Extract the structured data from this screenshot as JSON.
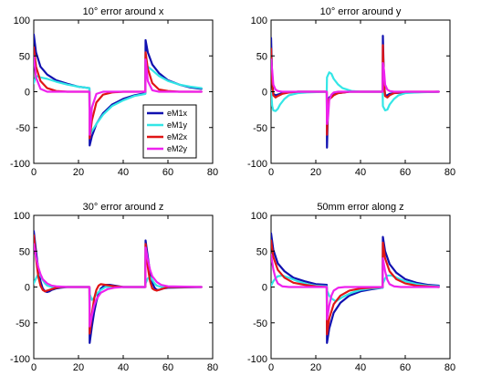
{
  "colors": {
    "eM1x": "#1010b0",
    "eM1y": "#33e6e6",
    "eM2x": "#e01515",
    "eM2y": "#ee22ee"
  },
  "chart_data": [
    {
      "type": "line",
      "title": "10° error around x",
      "xlabel": "",
      "ylabel": "",
      "xlim": [
        0,
        80
      ],
      "ylim": [
        -100,
        100
      ],
      "xticks": [
        0,
        20,
        40,
        60,
        80
      ],
      "yticks": [
        100,
        50,
        0,
        -50,
        -100
      ],
      "grid": false,
      "legend": {
        "placement": "center-right",
        "entries": [
          "eM1x",
          "eM1y",
          "eM2x",
          "eM2y"
        ]
      },
      "series": [
        {
          "name": "eM1x",
          "color": "#1010b0",
          "x": [
            0,
            1,
            3,
            6,
            10,
            15,
            20,
            24.9,
            25,
            26,
            28,
            31,
            35,
            40,
            45,
            49.9,
            50,
            51,
            53,
            56,
            60,
            65,
            70,
            75
          ],
          "y": [
            80,
            55,
            35,
            24,
            16,
            11,
            7,
            5,
            -75,
            -62,
            -45,
            -30,
            -18,
            -10,
            -5,
            -2,
            72,
            55,
            38,
            26,
            16,
            10,
            6,
            4
          ]
        },
        {
          "name": "eM1y",
          "color": "#33e6e6",
          "x": [
            0,
            1,
            3,
            6,
            10,
            15,
            20,
            24.9,
            25,
            26,
            28,
            31,
            35,
            40,
            45,
            49.9,
            50,
            51,
            53,
            56,
            60,
            65,
            70,
            75
          ],
          "y": [
            12,
            22,
            20,
            18,
            14,
            10,
            7,
            5,
            -60,
            -55,
            -45,
            -32,
            -20,
            -12,
            -6,
            -3,
            30,
            35,
            30,
            22,
            15,
            10,
            7,
            5
          ]
        },
        {
          "name": "eM2x",
          "color": "#e01515",
          "x": [
            0,
            1,
            3,
            6,
            10,
            15,
            20,
            24.9,
            25,
            26,
            28,
            31,
            35,
            40,
            45,
            49.9,
            50,
            51,
            53,
            56,
            60,
            65,
            70,
            75
          ],
          "y": [
            62,
            35,
            15,
            5,
            1,
            0,
            0,
            0,
            -65,
            -40,
            -15,
            -4,
            -1,
            0,
            0,
            0,
            55,
            32,
            12,
            3,
            1,
            0,
            0,
            0
          ]
        },
        {
          "name": "eM2y",
          "color": "#ee22ee",
          "x": [
            0,
            1,
            3,
            6,
            10,
            15,
            20,
            24.9,
            25,
            26,
            28,
            31,
            35,
            40,
            45,
            49.9,
            50,
            51,
            53,
            56,
            60,
            65,
            70,
            75
          ],
          "y": [
            50,
            20,
            4,
            0,
            0,
            0,
            0,
            0,
            -60,
            -22,
            -3,
            0,
            0,
            0,
            0,
            0,
            45,
            15,
            2,
            0,
            0,
            0,
            0,
            0
          ]
        }
      ]
    },
    {
      "type": "line",
      "title": "10° error around y",
      "xlabel": "",
      "ylabel": "",
      "xlim": [
        0,
        80
      ],
      "ylim": [
        -100,
        100
      ],
      "xticks": [
        0,
        20,
        40,
        60,
        80
      ],
      "yticks": [
        100,
        50,
        0,
        -50,
        -100
      ],
      "grid": false,
      "series": [
        {
          "name": "eM1x",
          "color": "#1010b0",
          "x": [
            0,
            0.5,
            1,
            2,
            3,
            5,
            8,
            12,
            24.9,
            25,
            25.5,
            26,
            27,
            28,
            30,
            35,
            49.9,
            50,
            50.5,
            51,
            52,
            53,
            55,
            60,
            75
          ],
          "y": [
            75,
            15,
            -3,
            -5,
            -4,
            -2,
            -1,
            0,
            0,
            -78,
            -20,
            -8,
            -6,
            -4,
            -2,
            0,
            0,
            78,
            12,
            -5,
            -5,
            -3,
            -2,
            -1,
            0
          ]
        },
        {
          "name": "eM1y",
          "color": "#33e6e6",
          "x": [
            0,
            0.5,
            1,
            2,
            3,
            4,
            6,
            8,
            12,
            16,
            24.9,
            25,
            26,
            27,
            28,
            30,
            32,
            36,
            40,
            49.9,
            50,
            51,
            52,
            53,
            55,
            57,
            60,
            65,
            75
          ],
          "y": [
            0,
            -20,
            -26,
            -27,
            -24,
            -18,
            -10,
            -5,
            -2,
            -1,
            0,
            20,
            27,
            25,
            18,
            10,
            5,
            1,
            0,
            0,
            -20,
            -26,
            -25,
            -18,
            -10,
            -5,
            -2,
            -1,
            0
          ]
        },
        {
          "name": "eM2x",
          "color": "#e01515",
          "x": [
            0,
            0.5,
            1,
            2,
            3,
            5,
            8,
            12,
            24.9,
            25,
            25.5,
            26,
            27,
            28,
            30,
            35,
            49.9,
            50,
            50.5,
            51,
            52,
            53,
            55,
            60,
            75
          ],
          "y": [
            60,
            12,
            -5,
            -8,
            -6,
            -3,
            -1,
            0,
            0,
            -60,
            -15,
            -10,
            -8,
            -5,
            -2,
            0,
            0,
            65,
            10,
            -6,
            -8,
            -5,
            -2,
            0,
            0
          ]
        },
        {
          "name": "eM2y",
          "color": "#ee22ee",
          "x": [
            0,
            0.5,
            1,
            2,
            3,
            5,
            8,
            24.9,
            25,
            25.5,
            26,
            27,
            28,
            30,
            49.9,
            50,
            50.5,
            51,
            52,
            53,
            55,
            75
          ],
          "y": [
            45,
            30,
            10,
            3,
            1,
            0,
            0,
            0,
            -45,
            -35,
            -12,
            -4,
            -1,
            0,
            0,
            40,
            30,
            10,
            3,
            1,
            0,
            0
          ]
        }
      ]
    },
    {
      "type": "line",
      "title": "30° error around z",
      "xlabel": "",
      "ylabel": "",
      "xlim": [
        0,
        80
      ],
      "ylim": [
        -100,
        100
      ],
      "xticks": [
        0,
        20,
        40,
        60,
        80
      ],
      "yticks": [
        100,
        50,
        0,
        -50,
        -100
      ],
      "grid": false,
      "series": [
        {
          "name": "eM1x",
          "color": "#1010b0",
          "x": [
            0,
            1,
            2,
            3,
            4,
            5,
            6,
            7,
            8,
            10,
            12,
            15,
            24.9,
            25,
            26,
            27,
            28,
            29,
            30,
            32,
            34,
            36,
            40,
            49.9,
            50,
            51,
            52,
            53,
            54,
            55,
            56,
            58,
            60,
            75
          ],
          "y": [
            78,
            50,
            25,
            8,
            -2,
            -6,
            -7,
            -6,
            -4,
            -2,
            -1,
            0,
            0,
            -78,
            -55,
            -35,
            -20,
            -9,
            -2,
            3,
            3,
            2,
            0,
            0,
            65,
            42,
            20,
            6,
            -1,
            -4,
            -4,
            -2,
            -1,
            0
          ]
        },
        {
          "name": "eM1y",
          "color": "#33e6e6",
          "x": [
            0,
            1,
            2,
            3,
            4,
            5,
            6,
            8,
            12,
            24.9,
            25,
            26,
            27,
            28,
            30,
            32,
            35,
            40,
            49.9,
            50,
            51,
            52,
            53,
            54,
            55,
            57,
            60,
            75
          ],
          "y": [
            5,
            12,
            18,
            16,
            10,
            5,
            2,
            0,
            0,
            0,
            -10,
            -18,
            -15,
            -10,
            -4,
            0,
            0,
            0,
            0,
            5,
            12,
            14,
            10,
            5,
            2,
            0,
            0,
            0
          ]
        },
        {
          "name": "eM2x",
          "color": "#e01515",
          "x": [
            0,
            1,
            2,
            3,
            4,
            5,
            6,
            7,
            8,
            10,
            12,
            24.9,
            25,
            26,
            27,
            28,
            29,
            30,
            32,
            34,
            36,
            40,
            49.9,
            50,
            51,
            52,
            53,
            54,
            55,
            56,
            58,
            60,
            75
          ],
          "y": [
            72,
            40,
            15,
            2,
            -4,
            -6,
            -5,
            -4,
            -3,
            -1,
            0,
            0,
            -65,
            -38,
            -16,
            -4,
            2,
            4,
            3,
            2,
            1,
            0,
            0,
            60,
            28,
            8,
            -2,
            -4,
            -5,
            -4,
            -2,
            0,
            0
          ]
        },
        {
          "name": "eM2y",
          "color": "#ee22ee",
          "x": [
            0,
            1,
            2,
            3,
            4,
            6,
            8,
            10,
            15,
            24.9,
            25,
            26,
            27,
            28,
            30,
            33,
            36,
            40,
            49.9,
            50,
            51,
            52,
            53,
            55,
            57,
            60,
            75
          ],
          "y": [
            60,
            42,
            28,
            18,
            11,
            5,
            2,
            1,
            0,
            0,
            -55,
            -40,
            -26,
            -17,
            -8,
            -3,
            -1,
            0,
            0,
            55,
            38,
            24,
            15,
            7,
            3,
            1,
            0
          ]
        }
      ]
    },
    {
      "type": "line",
      "title": "50mm error along z",
      "xlabel": "",
      "ylabel": "",
      "xlim": [
        0,
        80
      ],
      "ylim": [
        -100,
        100
      ],
      "xticks": [
        0,
        20,
        40,
        60,
        80
      ],
      "yticks": [
        100,
        50,
        0,
        -50,
        -100
      ],
      "grid": false,
      "series": [
        {
          "name": "eM1x",
          "color": "#1010b0",
          "x": [
            0,
            1,
            3,
            6,
            10,
            15,
            20,
            24.9,
            25,
            26,
            28,
            31,
            35,
            40,
            45,
            49.9,
            50,
            51,
            53,
            56,
            60,
            65,
            70,
            75
          ],
          "y": [
            75,
            52,
            33,
            22,
            13,
            8,
            4,
            3,
            -78,
            -58,
            -36,
            -22,
            -12,
            -6,
            -3,
            -1,
            70,
            50,
            32,
            20,
            11,
            6,
            3,
            2
          ]
        },
        {
          "name": "eM1y",
          "color": "#33e6e6",
          "x": [
            0,
            1,
            2,
            3,
            5,
            8,
            12,
            16,
            20,
            24.9,
            25,
            26,
            27,
            29,
            32,
            36,
            40,
            45,
            49.9,
            50,
            51,
            52,
            54,
            57,
            60,
            65,
            70,
            75
          ],
          "y": [
            2,
            8,
            12,
            15,
            16,
            13,
            8,
            4,
            2,
            1,
            -5,
            -12,
            -16,
            -20,
            -14,
            -8,
            -4,
            -2,
            -1,
            5,
            12,
            16,
            16,
            12,
            8,
            4,
            2,
            1
          ]
        },
        {
          "name": "eM2x",
          "color": "#e01515",
          "x": [
            0,
            1,
            3,
            6,
            10,
            15,
            20,
            24.9,
            25,
            26,
            28,
            31,
            35,
            40,
            45,
            49.9,
            50,
            51,
            53,
            56,
            60,
            65,
            70,
            75
          ],
          "y": [
            65,
            42,
            24,
            13,
            6,
            3,
            1,
            0,
            -66,
            -44,
            -24,
            -12,
            -5,
            -2,
            -1,
            0,
            62,
            40,
            22,
            11,
            5,
            2,
            1,
            0
          ]
        },
        {
          "name": "eM2y",
          "color": "#ee22ee",
          "x": [
            0,
            1,
            2,
            3,
            5,
            8,
            12,
            24.9,
            25,
            26,
            27,
            28,
            30,
            33,
            38,
            49.9,
            50,
            51,
            52,
            53,
            55,
            58,
            62,
            75
          ],
          "y": [
            45,
            25,
            12,
            5,
            1,
            0,
            0,
            0,
            -45,
            -26,
            -12,
            -5,
            -1,
            0,
            0,
            0,
            40,
            22,
            10,
            4,
            1,
            0,
            0,
            0
          ]
        }
      ]
    }
  ]
}
